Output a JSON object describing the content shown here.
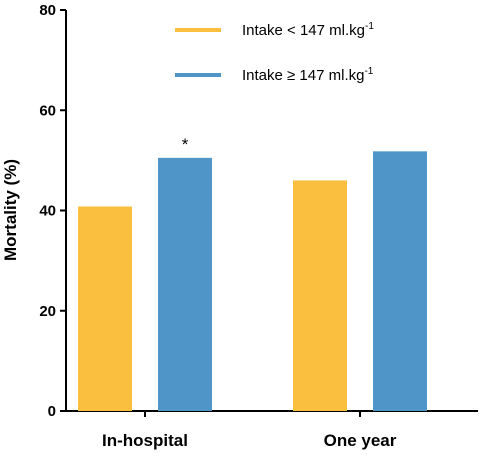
{
  "chart_data": {
    "type": "bar",
    "title": "",
    "xlabel": "",
    "ylabel": "Mortality (%)",
    "ylim": [
      0,
      80
    ],
    "yticks": [
      0,
      20,
      40,
      60,
      80
    ],
    "categories": [
      "In-hospital",
      "One year"
    ],
    "series": [
      {
        "name": "Intake < 147 ml.kg",
        "name_sup": "-1",
        "color": "#FBBF40",
        "values": [
          40.8,
          46.0
        ]
      },
      {
        "name": "Intake ≥ 147 ml.kg",
        "name_sup": "-1",
        "color": "#4F95C8",
        "values": [
          50.5,
          51.8
        ]
      }
    ],
    "annotations": [
      {
        "text": "*",
        "category_index": 0,
        "series_index": 1
      }
    ],
    "legend_position": "top-right",
    "grid": false
  }
}
